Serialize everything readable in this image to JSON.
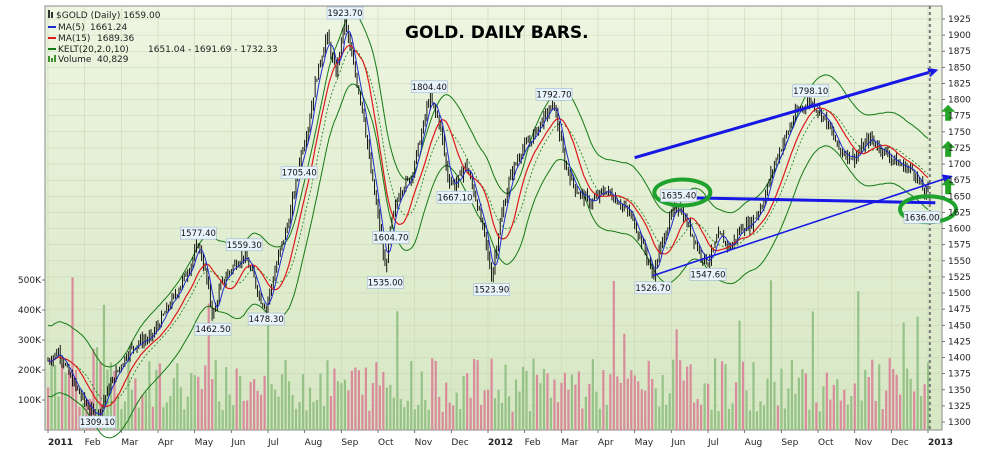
{
  "chart_data": {
    "type": "candlestick",
    "title": "GOLD. DAILY BARS.",
    "colors": {
      "price_bars": "#000000",
      "ma5": "#1f2dcc",
      "ma15": "#dd1a1a",
      "keltner": "#157a15",
      "volume_up": "#96c287",
      "volume_down": "#d98b9c",
      "background_top": "#eaf3dc",
      "background_bottom": "#d5e6c1",
      "trend_arrows": "#1717e6",
      "circles": "#1fa12e",
      "up_arrows": "#26a327"
    },
    "header": {
      "symbol_line": "$GOLD (Daily) 1659.00",
      "legend": [
        {
          "name": "MA(5)",
          "value": "1661.24",
          "color": "#1f2dcc"
        },
        {
          "name": "MA(15)",
          "value": "1689.36",
          "color": "#dd1a1a"
        },
        {
          "name": "KELT(20,2.0,10)",
          "value": "1651.04 - 1691.69 - 1732.33",
          "color": "#157a15"
        },
        {
          "name": "Volume",
          "value": "40,829",
          "color": "#3f8f2f"
        }
      ]
    },
    "y_axis": {
      "ylim": [
        1290,
        1940
      ],
      "ticks": [
        1300,
        1325,
        1350,
        1375,
        1400,
        1425,
        1450,
        1475,
        1500,
        1525,
        1550,
        1575,
        1600,
        1625,
        1650,
        1675,
        1700,
        1725,
        1750,
        1775,
        1800,
        1825,
        1850,
        1875,
        1900,
        1925
      ]
    },
    "volume_axis": {
      "ylim": [
        0,
        600000
      ],
      "ticks": [
        100000,
        200000,
        300000,
        400000,
        500000
      ],
      "tick_labels": [
        "100K",
        "200K",
        "300K",
        "400K",
        "500K"
      ]
    },
    "x_axis": {
      "range_months": [
        0,
        24.4
      ],
      "labels": [
        {
          "m": 0,
          "label": "2011",
          "bold": true
        },
        {
          "m": 1,
          "label": "Feb"
        },
        {
          "m": 2,
          "label": "Mar"
        },
        {
          "m": 3,
          "label": "Apr"
        },
        {
          "m": 4,
          "label": "May"
        },
        {
          "m": 5,
          "label": "Jun"
        },
        {
          "m": 6,
          "label": "Jul"
        },
        {
          "m": 7,
          "label": "Aug"
        },
        {
          "m": 8,
          "label": "Sep"
        },
        {
          "m": 9,
          "label": "Oct"
        },
        {
          "m": 10,
          "label": "Nov"
        },
        {
          "m": 11,
          "label": "Dec"
        },
        {
          "m": 12,
          "label": "2012",
          "bold": true
        },
        {
          "m": 13,
          "label": "Feb"
        },
        {
          "m": 14,
          "label": "Mar"
        },
        {
          "m": 15,
          "label": "Apr"
        },
        {
          "m": 16,
          "label": "May"
        },
        {
          "m": 17,
          "label": "Jun"
        },
        {
          "m": 18,
          "label": "Jul"
        },
        {
          "m": 19,
          "label": "Aug"
        },
        {
          "m": 20,
          "label": "Sep"
        },
        {
          "m": 21,
          "label": "Oct"
        },
        {
          "m": 22,
          "label": "Nov"
        },
        {
          "m": 23,
          "label": "Dec"
        },
        {
          "m": 24,
          "label": "2013",
          "bold": true
        }
      ]
    },
    "price_path": [
      [
        0.0,
        1395
      ],
      [
        0.3,
        1410
      ],
      [
        0.6,
        1370
      ],
      [
        0.9,
        1340
      ],
      [
        1.2,
        1315
      ],
      [
        1.35,
        1309.1
      ],
      [
        1.6,
        1345
      ],
      [
        1.9,
        1380
      ],
      [
        2.2,
        1410
      ],
      [
        2.5,
        1425
      ],
      [
        2.8,
        1430
      ],
      [
        3.1,
        1460
      ],
      [
        3.5,
        1500
      ],
      [
        3.9,
        1545
      ],
      [
        4.1,
        1577.4
      ],
      [
        4.3,
        1530
      ],
      [
        4.5,
        1462.5
      ],
      [
        4.7,
        1510
      ],
      [
        4.9,
        1530
      ],
      [
        5.1,
        1545
      ],
      [
        5.35,
        1559.3
      ],
      [
        5.6,
        1525
      ],
      [
        5.8,
        1490
      ],
      [
        5.95,
        1478.3
      ],
      [
        6.3,
        1560
      ],
      [
        6.6,
        1620
      ],
      [
        6.85,
        1705.4
      ],
      [
        7.1,
        1760
      ],
      [
        7.3,
        1830
      ],
      [
        7.6,
        1900
      ],
      [
        7.85,
        1840
      ],
      [
        8.1,
        1923.7
      ],
      [
        8.3,
        1860
      ],
      [
        8.6,
        1780
      ],
      [
        8.8,
        1690
      ],
      [
        9.0,
        1620
      ],
      [
        9.2,
        1535
      ],
      [
        9.35,
        1604.7
      ],
      [
        9.6,
        1660
      ],
      [
        9.9,
        1680
      ],
      [
        10.2,
        1750
      ],
      [
        10.4,
        1804.4
      ],
      [
        10.7,
        1760
      ],
      [
        10.9,
        1680
      ],
      [
        11.1,
        1667.1
      ],
      [
        11.4,
        1700
      ],
      [
        11.7,
        1640
      ],
      [
        11.9,
        1590
      ],
      [
        12.1,
        1523.9
      ],
      [
        12.3,
        1600
      ],
      [
        12.6,
        1680
      ],
      [
        12.9,
        1720
      ],
      [
        13.2,
        1740
      ],
      [
        13.5,
        1770
      ],
      [
        13.8,
        1792.7
      ],
      [
        14.1,
        1700
      ],
      [
        14.4,
        1660
      ],
      [
        14.8,
        1640
      ],
      [
        15.2,
        1660
      ],
      [
        15.6,
        1640
      ],
      [
        15.9,
        1620
      ],
      [
        16.2,
        1580
      ],
      [
        16.5,
        1526.7
      ],
      [
        16.75,
        1580
      ],
      [
        17.0,
        1620
      ],
      [
        17.2,
        1635.4
      ],
      [
        17.5,
        1600
      ],
      [
        17.8,
        1560
      ],
      [
        18.0,
        1547.6
      ],
      [
        18.3,
        1590
      ],
      [
        18.6,
        1570
      ],
      [
        18.9,
        1600
      ],
      [
        19.2,
        1610
      ],
      [
        19.5,
        1640
      ],
      [
        19.8,
        1700
      ],
      [
        20.1,
        1740
      ],
      [
        20.4,
        1780
      ],
      [
        20.8,
        1798.1
      ],
      [
        21.2,
        1770
      ],
      [
        21.6,
        1720
      ],
      [
        22.0,
        1710
      ],
      [
        22.4,
        1740
      ],
      [
        22.8,
        1720
      ],
      [
        23.2,
        1700
      ],
      [
        23.6,
        1690
      ],
      [
        23.9,
        1655
      ],
      [
        24.0,
        1659
      ]
    ],
    "annotations": [
      {
        "label": "1309.10",
        "m": 1.35,
        "price": 1309.1,
        "pos": "below"
      },
      {
        "label": "1577.40",
        "m": 4.1,
        "price": 1577.4,
        "pos": "above"
      },
      {
        "label": "1462.50",
        "m": 4.5,
        "price": 1462.5,
        "pos": "below"
      },
      {
        "label": "1559.30",
        "m": 5.35,
        "price": 1559.3,
        "pos": "above"
      },
      {
        "label": "1478.30",
        "m": 5.95,
        "price": 1478.3,
        "pos": "below"
      },
      {
        "label": "1705.40",
        "m": 6.85,
        "price": 1705.4,
        "pos": "below"
      },
      {
        "label": "1923.70",
        "m": 8.1,
        "price": 1923.7,
        "pos": "above"
      },
      {
        "label": "1535.00",
        "m": 9.2,
        "price": 1535.0,
        "pos": "below"
      },
      {
        "label": "1604.70",
        "m": 9.35,
        "price": 1604.7,
        "pos": "below"
      },
      {
        "label": "1804.40",
        "m": 10.4,
        "price": 1804.4,
        "pos": "above"
      },
      {
        "label": "1667.10",
        "m": 11.1,
        "price": 1667.1,
        "pos": "below"
      },
      {
        "label": "1523.90",
        "m": 12.1,
        "price": 1523.9,
        "pos": "below"
      },
      {
        "label": "1792.70",
        "m": 13.8,
        "price": 1792.7,
        "pos": "above"
      },
      {
        "label": "1526.70",
        "m": 16.5,
        "price": 1526.7,
        "pos": "below"
      },
      {
        "label": "1635.40",
        "m": 17.2,
        "price": 1635.4,
        "pos": "above"
      },
      {
        "label": "1547.60",
        "m": 18.0,
        "price": 1547.6,
        "pos": "below"
      },
      {
        "label": "1798.10",
        "m": 20.8,
        "price": 1798.1,
        "pos": "above"
      },
      {
        "label": "1636.00",
        "m": 24.0,
        "price": 1636.0,
        "pos": "below"
      }
    ],
    "trend_lines": [
      {
        "from": [
          16.0,
          1710
        ],
        "to": [
          24.2,
          1845
        ],
        "style": "thick",
        "arrow": true
      },
      {
        "from": [
          16.5,
          1527
        ],
        "to": [
          24.6,
          1680
        ],
        "style": "thin",
        "arrow": true
      },
      {
        "from": [
          17.2,
          1648
        ],
        "to": [
          24.2,
          1640
        ],
        "style": "thick",
        "arrow": false
      }
    ],
    "circles": [
      {
        "m": 17.3,
        "price": 1656
      },
      {
        "m": 24.0,
        "price": 1630
      }
    ],
    "up_arrows": [
      {
        "m": 24.55,
        "price": 1664
      },
      {
        "m": 24.55,
        "price": 1722
      },
      {
        "m": 24.55,
        "price": 1778
      }
    ],
    "current_marker": {
      "m": 24.05,
      "style": "dotted"
    }
  }
}
